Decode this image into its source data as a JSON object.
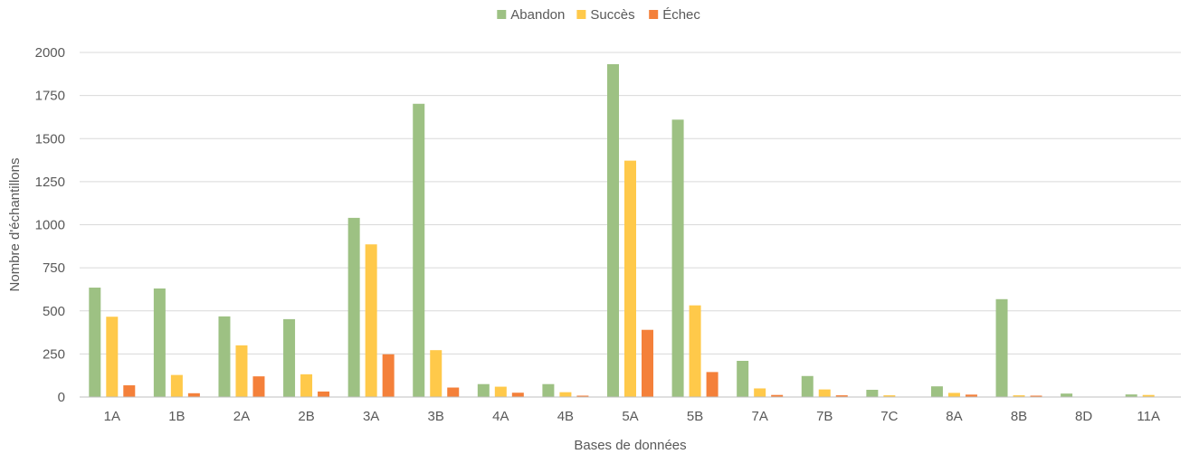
{
  "chart_data": {
    "type": "bar",
    "xlabel": "Bases de données",
    "ylabel": "Nombre d'échantillons",
    "ylim": [
      0,
      2000
    ],
    "yticks": [
      0,
      250,
      500,
      750,
      1000,
      1250,
      1500,
      1750,
      2000
    ],
    "legend_position": "top-center",
    "grid": true,
    "categories": [
      "1A",
      "1B",
      "2A",
      "2B",
      "3A",
      "3B",
      "4A",
      "4B",
      "5A",
      "5B",
      "7A",
      "7B",
      "7C",
      "8A",
      "8B",
      "8D",
      "11A"
    ],
    "series": [
      {
        "name": "Abandon",
        "color": "#9dc183",
        "values": [
          635,
          630,
          468,
          452,
          1040,
          1702,
          75,
          75,
          1932,
          1610,
          210,
          122,
          42,
          62,
          568,
          20,
          15
        ]
      },
      {
        "name": "Succès",
        "color": "#ffc94a",
        "values": [
          466,
          128,
          300,
          132,
          886,
          272,
          60,
          28,
          1372,
          532,
          50,
          44,
          10,
          24,
          10,
          0,
          12
        ]
      },
      {
        "name": "Échec",
        "color": "#f4803a",
        "values": [
          68,
          22,
          120,
          32,
          248,
          55,
          25,
          8,
          390,
          145,
          12,
          10,
          0,
          14,
          8,
          0,
          0
        ]
      }
    ]
  }
}
